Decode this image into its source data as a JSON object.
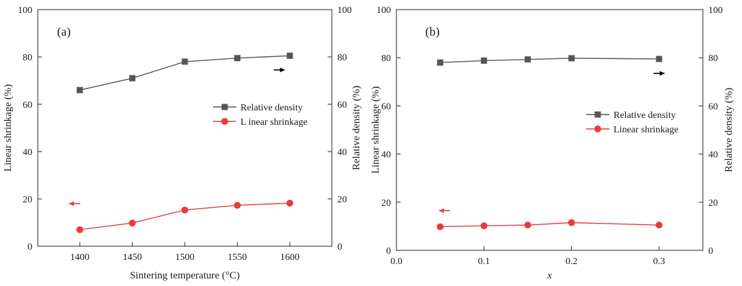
{
  "colors": {
    "density": "#555555",
    "shrinkage": "#e83a3a",
    "axis": "#222222"
  },
  "chart_data": [
    {
      "type": "line",
      "panel_tag": "(a)",
      "xlabel": "Sintering temperature (°C)",
      "ylabel": "Linear shrinkage (%)",
      "y2label": "Relative density (%)",
      "xlim": [
        1360,
        1640
      ],
      "ylim": [
        0,
        100
      ],
      "y2lim": [
        0,
        100
      ],
      "xticks": [
        1400,
        1450,
        1500,
        1550,
        1600
      ],
      "xtick_labels": [
        "1400",
        "1450",
        "1500",
        "1550",
        "1600"
      ],
      "yticks": [
        0,
        20,
        40,
        60,
        80,
        100
      ],
      "ytick_labels": [
        "0",
        "20",
        "40",
        "60",
        "80",
        "100"
      ],
      "y2ticks": [
        0,
        20,
        40,
        60,
        80,
        100
      ],
      "y2tick_labels": [
        "0",
        "20",
        "40",
        "60",
        "80",
        "100"
      ],
      "series": [
        {
          "name": "Relative density",
          "marker": "square",
          "axis": "right",
          "x": [
            1400,
            1450,
            1500,
            1550,
            1600
          ],
          "values": [
            66,
            71,
            78,
            79.5,
            80.5
          ]
        },
        {
          "name": "L inear shrinkage",
          "marker": "circle",
          "axis": "left",
          "x": [
            1400,
            1450,
            1500,
            1550,
            1600
          ],
          "values": [
            7,
            9.8,
            15.3,
            17.3,
            18.2
          ]
        }
      ],
      "arrows": [
        {
          "direction": "right",
          "x": 1590,
          "y": 74.5
        },
        {
          "direction": "left",
          "x": 1395,
          "y": 18
        }
      ],
      "legend_position": "right-middle"
    },
    {
      "type": "line",
      "panel_tag": "(b)",
      "xlabel": "x",
      "ylabel": "Linear shrinkage (%)",
      "y2label": "Relative density (%)",
      "xlim": [
        0,
        0.35
      ],
      "ylim": [
        0,
        100
      ],
      "y2lim": [
        0,
        100
      ],
      "xticks": [
        0,
        0.1,
        0.2,
        0.3
      ],
      "xtick_labels": [
        "0.0",
        "0.1",
        "0.2",
        "0.3"
      ],
      "yticks": [
        0,
        20,
        40,
        60,
        80,
        100
      ],
      "ytick_labels": [
        "0",
        "20",
        "40",
        "60",
        "80",
        "100"
      ],
      "y2ticks": [
        0,
        20,
        40,
        60,
        80,
        100
      ],
      "y2tick_labels": [
        "0",
        "20",
        "40",
        "60",
        "80",
        "100"
      ],
      "series": [
        {
          "name": "Relative density",
          "marker": "square",
          "axis": "right",
          "x": [
            0.05,
            0.1,
            0.15,
            0.2,
            0.3
          ],
          "values": [
            78,
            78.8,
            79.3,
            79.8,
            79.5
          ]
        },
        {
          "name": "Linear shrinkage",
          "marker": "circle",
          "axis": "left",
          "x": [
            0.05,
            0.1,
            0.15,
            0.2,
            0.3
          ],
          "values": [
            9.8,
            10.2,
            10.5,
            11.5,
            10.5
          ]
        }
      ],
      "arrows": [
        {
          "direction": "right",
          "x": 0.3,
          "y": 73.5
        },
        {
          "direction": "left",
          "x": 0.055,
          "y": 16.5
        }
      ],
      "legend_position": "right-middle"
    }
  ]
}
